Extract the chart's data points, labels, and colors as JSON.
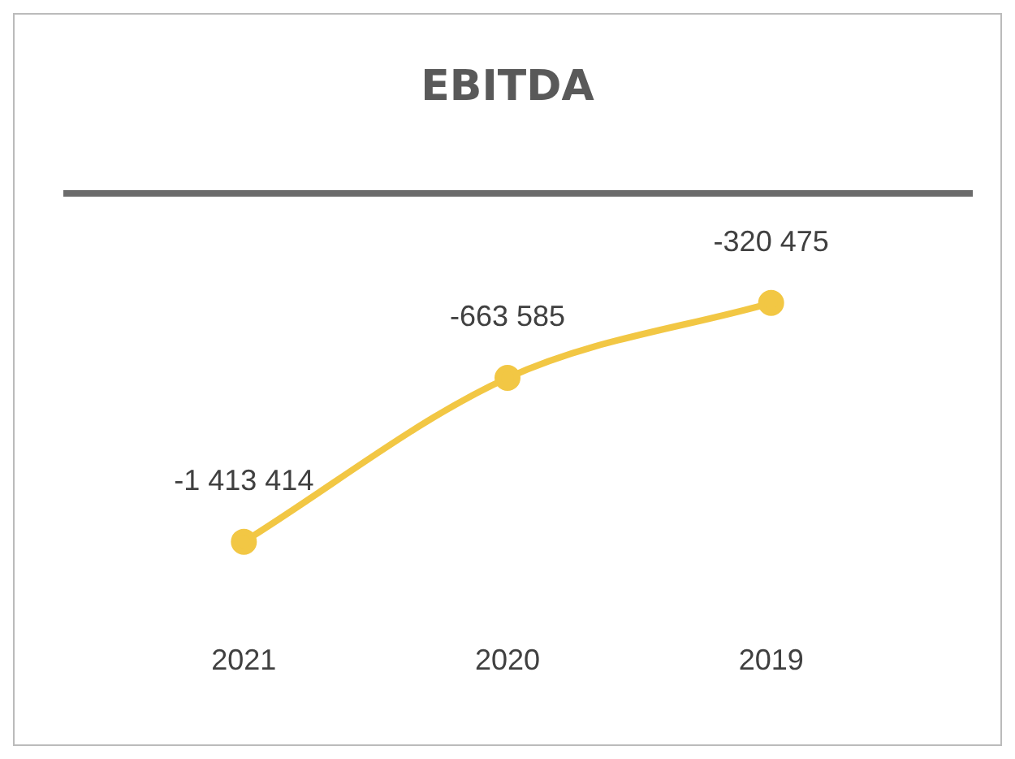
{
  "chart_data": {
    "type": "line",
    "title": "EBITDA",
    "categories": [
      "2021",
      "2020",
      "2019"
    ],
    "values": [
      -1413414,
      -663585,
      -320475
    ],
    "value_labels": [
      "-1 413 414",
      "-663 585",
      "-320 475"
    ],
    "color": "#f2c744",
    "marker": "circle",
    "line_style": "solid",
    "tick_labels": "x",
    "grid": false,
    "legend": false
  }
}
